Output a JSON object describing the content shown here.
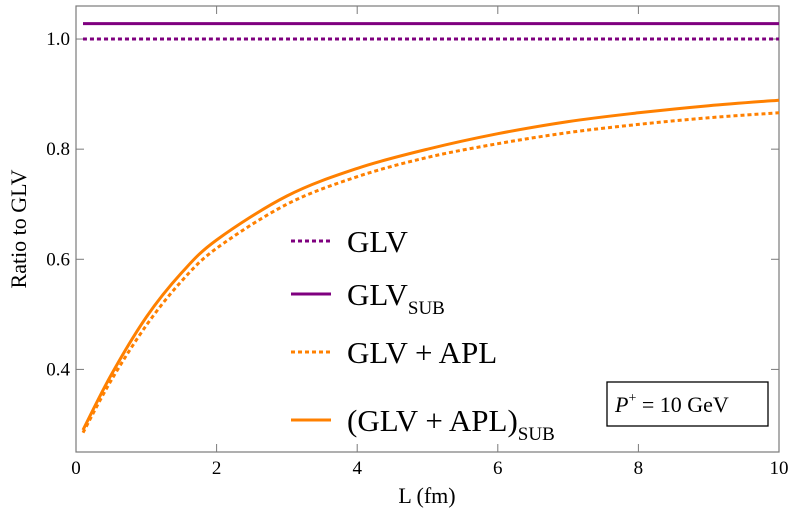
{
  "chart_data": {
    "type": "line",
    "title": "",
    "xlabel": "L (fm)",
    "ylabel": "Ratio to GLV",
    "xlim": [
      0,
      10
    ],
    "ylim": [
      0.25,
      1.06
    ],
    "x_ticks": [
      "0",
      "2",
      "4",
      "6",
      "8",
      "10"
    ],
    "y_ticks": [
      "0.4",
      "0.6",
      "0.8",
      "1.0"
    ],
    "x": [
      0.1,
      0.5,
      1,
      1.5,
      2,
      3,
      4,
      5,
      6,
      7,
      8,
      9,
      10
    ],
    "series": [
      {
        "name": "GLV",
        "name_sub": "",
        "color": "#7f007f",
        "dashed": true,
        "values": [
          1.0,
          1.0,
          1.0,
          1.0,
          1.0,
          1.0,
          1.0,
          1.0,
          1.0,
          1.0,
          1.0,
          1.0,
          1.0
        ]
      },
      {
        "name": "GLV",
        "name_sub": "SUB",
        "color": "#7f007f",
        "dashed": false,
        "values": [
          1.028,
          1.028,
          1.028,
          1.028,
          1.028,
          1.028,
          1.028,
          1.028,
          1.028,
          1.028,
          1.028,
          1.028,
          1.028
        ]
      },
      {
        "name": "GLV + APL",
        "name_sub": "",
        "color": "#ff8000",
        "dashed": true,
        "values": [
          0.285,
          0.38,
          0.48,
          0.56,
          0.62,
          0.7,
          0.75,
          0.785,
          0.81,
          0.83,
          0.845,
          0.857,
          0.866
        ]
      },
      {
        "name": "(GLV + APL)",
        "name_sub": "SUB",
        "color": "#ff8000",
        "dashed": false,
        "values": [
          0.29,
          0.39,
          0.495,
          0.575,
          0.635,
          0.715,
          0.765,
          0.8,
          0.828,
          0.85,
          0.866,
          0.879,
          0.889
        ]
      }
    ],
    "legend_position": "center",
    "annotation": {
      "prefix": "P",
      "superscript": "+",
      "text": " = 10 GeV"
    }
  }
}
